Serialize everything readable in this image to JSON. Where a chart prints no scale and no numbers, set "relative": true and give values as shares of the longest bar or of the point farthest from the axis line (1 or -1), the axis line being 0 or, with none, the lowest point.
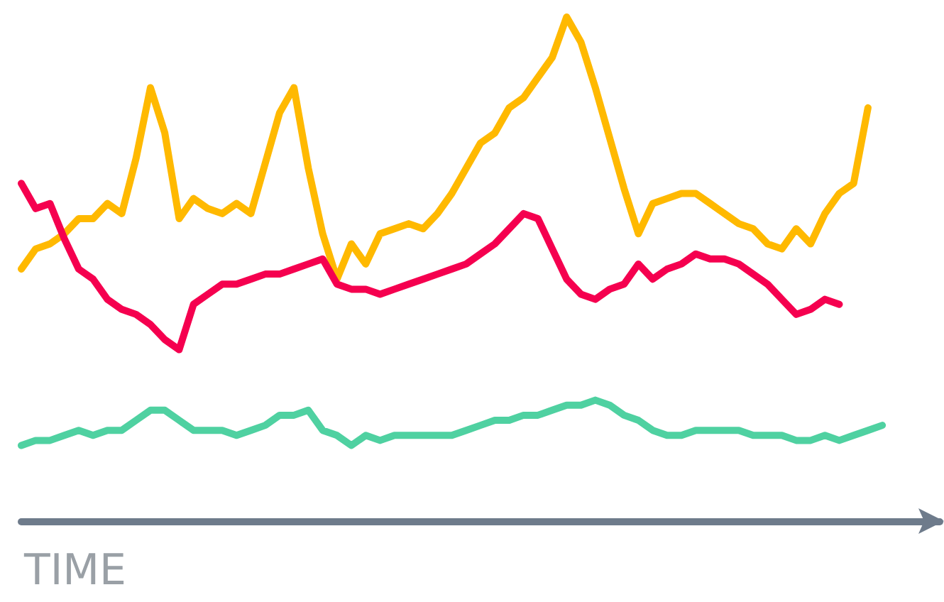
{
  "chart_data": {
    "type": "line",
    "relative": true,
    "xlabel": "TIME",
    "marker": "none",
    "line_style": "solid",
    "categories": [
      null,
      null,
      null,
      null,
      null,
      null,
      null,
      null,
      null,
      null,
      null,
      null,
      null,
      null,
      null,
      null,
      null,
      null,
      null,
      null,
      null,
      null,
      null,
      null,
      null,
      null,
      null,
      null,
      null,
      null,
      null,
      null,
      null,
      null,
      null,
      null,
      null,
      null,
      null,
      null,
      null,
      null,
      null,
      null,
      null,
      null,
      null,
      null,
      null,
      null,
      null,
      null,
      null,
      null,
      null,
      null,
      null,
      null,
      null,
      null,
      null,
      null,
      null,
      null,
      null
    ],
    "series": [
      {
        "color": "#ffb900",
        "values": [
          0.5,
          0.54,
          0.55,
          0.57,
          0.6,
          0.6,
          0.63,
          0.61,
          0.72,
          0.86,
          0.77,
          0.6,
          0.64,
          0.62,
          0.61,
          0.63,
          0.61,
          0.71,
          0.81,
          0.86,
          0.7,
          0.57,
          0.48,
          0.55,
          0.51,
          0.57,
          0.58,
          0.59,
          0.58,
          0.61,
          0.65,
          0.7,
          0.75,
          0.77,
          0.82,
          0.84,
          0.88,
          0.92,
          1.0,
          0.95,
          0.86,
          0.76,
          0.66,
          0.57,
          0.63,
          0.64,
          0.65,
          0.65,
          0.63,
          0.61,
          0.59,
          0.58,
          0.55,
          0.54,
          0.58,
          0.55,
          0.61,
          0.65,
          0.67,
          0.82,
          null,
          null,
          null,
          null,
          null
        ]
      },
      {
        "color": "#f5004f",
        "values": [
          0.67,
          0.62,
          0.63,
          0.56,
          0.5,
          0.48,
          0.44,
          0.42,
          0.41,
          0.39,
          0.36,
          0.34,
          0.43,
          0.45,
          0.47,
          0.47,
          0.48,
          0.49,
          0.49,
          0.5,
          0.51,
          0.52,
          0.47,
          0.46,
          0.46,
          0.45,
          0.46,
          0.47,
          0.48,
          0.49,
          0.5,
          0.51,
          0.53,
          0.55,
          0.58,
          0.61,
          0.6,
          0.54,
          0.48,
          0.45,
          0.44,
          0.46,
          0.47,
          0.51,
          0.48,
          0.5,
          0.51,
          0.53,
          0.52,
          0.52,
          0.51,
          0.49,
          0.47,
          0.44,
          0.41,
          0.42,
          0.44,
          0.43,
          null,
          null,
          null,
          null,
          null,
          null,
          null
        ]
      },
      {
        "color": "#4fd1a1",
        "values": [
          0.15,
          0.16,
          0.16,
          0.17,
          0.18,
          0.17,
          0.18,
          0.18,
          0.2,
          0.22,
          0.22,
          0.2,
          0.18,
          0.18,
          0.18,
          0.17,
          0.18,
          0.19,
          0.21,
          0.21,
          0.22,
          0.18,
          0.17,
          0.15,
          0.17,
          0.16,
          0.17,
          0.17,
          0.17,
          0.17,
          0.17,
          0.18,
          0.19,
          0.2,
          0.2,
          0.21,
          0.21,
          0.22,
          0.23,
          0.23,
          0.24,
          0.23,
          0.21,
          0.2,
          0.18,
          0.17,
          0.17,
          0.18,
          0.18,
          0.18,
          0.18,
          0.17,
          0.17,
          0.17,
          0.16,
          0.16,
          0.17,
          0.16,
          0.17,
          0.18,
          0.19,
          null,
          null,
          null,
          null
        ]
      }
    ]
  }
}
